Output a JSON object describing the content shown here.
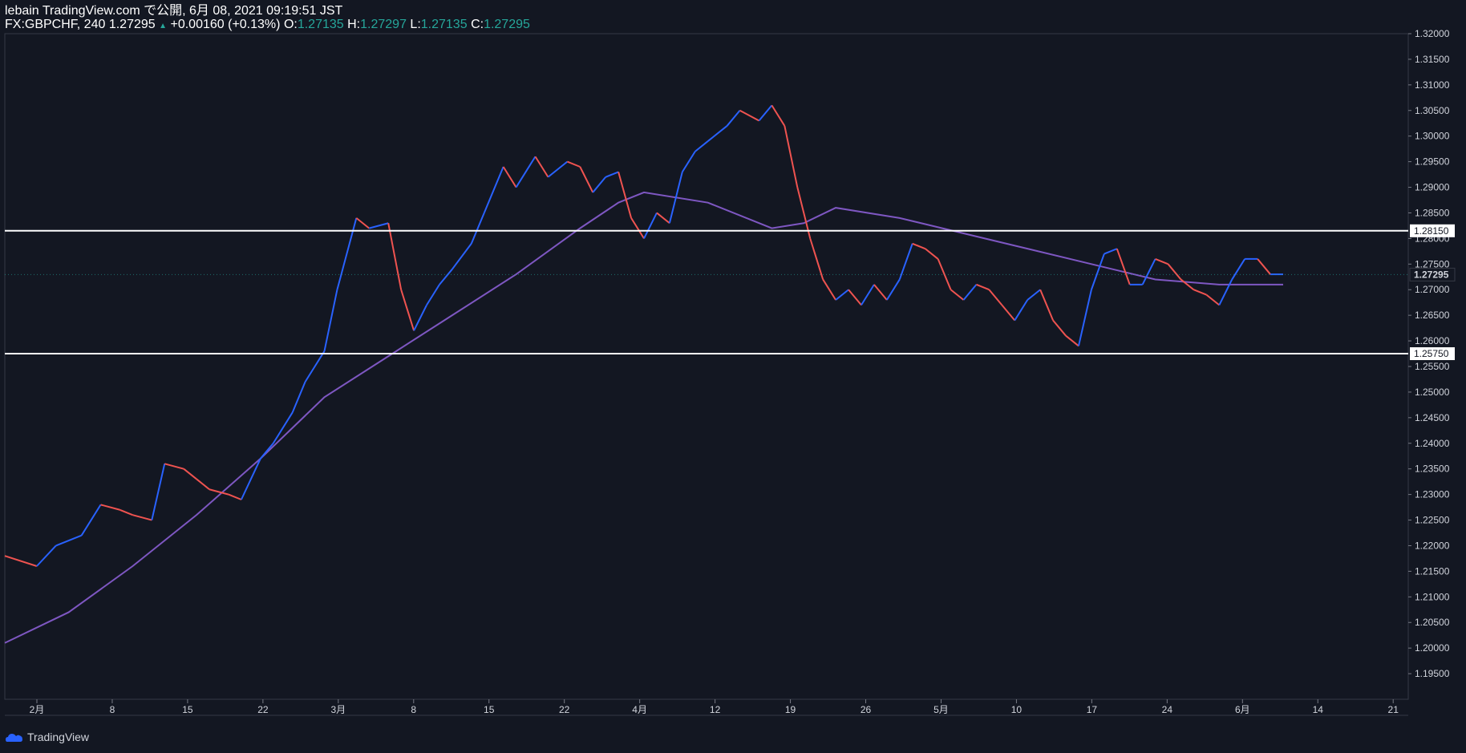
{
  "header": {
    "line1": "lebain TradingView.com で公開, 6月 08, 2021 09:19:51 JST",
    "symbol": "FX:GBPCHF, 240",
    "last": "1.27295",
    "change": "+0.00160 (+0.13%)",
    "o_label": "O:",
    "o": "1.27135",
    "h_label": "H:",
    "h": "1.27297",
    "l_label": "L:",
    "l": "1.27135",
    "c_label": "C:",
    "c": "1.27295"
  },
  "footer": {
    "brand": "TradingView"
  },
  "colors": {
    "up": "#2962ff",
    "down": "#ef5350",
    "ma": "#7e57c2",
    "bg": "#131722",
    "lines": "#ffffff"
  },
  "chart_data": {
    "type": "line",
    "ylim": [
      1.19,
      1.32
    ],
    "y_ticks": [
      "1.32000",
      "1.31500",
      "1.31000",
      "1.30500",
      "1.30000",
      "1.29500",
      "1.29000",
      "1.28500",
      "1.28000",
      "1.27500",
      "1.27000",
      "1.26500",
      "1.26000",
      "1.25500",
      "1.25000",
      "1.24500",
      "1.24000",
      "1.23500",
      "1.23000",
      "1.22500",
      "1.22000",
      "1.21500",
      "1.21000",
      "1.20500",
      "1.20000",
      "1.19500"
    ],
    "x_ticks": [
      "2月",
      "8",
      "15",
      "22",
      "3月",
      "8",
      "15",
      "22",
      "4月",
      "12",
      "19",
      "26",
      "5月",
      "10",
      "17",
      "24",
      "6月",
      "14",
      "21"
    ],
    "horizontal_lines": [
      {
        "label": "1.28150",
        "value": 1.2815
      },
      {
        "label": "1.25750",
        "value": 1.2575
      }
    ],
    "current_price_label": "1.27295",
    "current_price": 1.27295,
    "price_series": {
      "name": "",
      "x": [
        0,
        5,
        8,
        12,
        15,
        18,
        20,
        23,
        25,
        28,
        30,
        32,
        35,
        37,
        40,
        42,
        45,
        47,
        50,
        52,
        55,
        57,
        60,
        62,
        64,
        66,
        68,
        70,
        73,
        75,
        78,
        80,
        83,
        85,
        88,
        90,
        92,
        94,
        96,
        98,
        100,
        102,
        104,
        106,
        108,
        110,
        113,
        115,
        118,
        120,
        122,
        124,
        126,
        128,
        130,
        132,
        134,
        136,
        138,
        140,
        142,
        144,
        146,
        148,
        150,
        152,
        154,
        156,
        158,
        160,
        162,
        164,
        166,
        168,
        170,
        172,
        174,
        176,
        178,
        180,
        182,
        184,
        186,
        188,
        190,
        192,
        194,
        196,
        198,
        200
      ],
      "y": [
        1.218,
        1.216,
        1.22,
        1.222,
        1.228,
        1.227,
        1.226,
        1.225,
        1.236,
        1.235,
        1.233,
        1.231,
        1.23,
        1.229,
        1.237,
        1.24,
        1.246,
        1.252,
        1.258,
        1.27,
        1.284,
        1.282,
        1.283,
        1.27,
        1.262,
        1.267,
        1.271,
        1.274,
        1.279,
        1.285,
        1.294,
        1.29,
        1.296,
        1.292,
        1.295,
        1.294,
        1.289,
        1.292,
        1.293,
        1.284,
        1.28,
        1.285,
        1.283,
        1.293,
        1.297,
        1.299,
        1.302,
        1.305,
        1.303,
        1.306,
        1.302,
        1.29,
        1.28,
        1.272,
        1.268,
        1.27,
        1.267,
        1.271,
        1.268,
        1.272,
        1.279,
        1.278,
        1.276,
        1.27,
        1.268,
        1.271,
        1.27,
        1.267,
        1.264,
        1.268,
        1.27,
        1.264,
        1.261,
        1.259,
        1.27,
        1.277,
        1.278,
        1.271,
        1.271,
        1.276,
        1.275,
        1.272,
        1.27,
        1.269,
        1.267,
        1.272,
        1.276,
        1.276,
        1.273,
        1.273
      ]
    },
    "ma_series": {
      "name": "",
      "x": [
        0,
        10,
        20,
        30,
        40,
        50,
        60,
        70,
        80,
        90,
        96,
        100,
        110,
        120,
        125,
        130,
        140,
        150,
        160,
        170,
        180,
        190,
        200
      ],
      "y": [
        1.201,
        1.207,
        1.216,
        1.226,
        1.237,
        1.249,
        1.257,
        1.265,
        1.273,
        1.282,
        1.287,
        1.289,
        1.287,
        1.282,
        1.283,
        1.286,
        1.284,
        1.281,
        1.278,
        1.275,
        1.272,
        1.271,
        1.271
      ]
    }
  }
}
